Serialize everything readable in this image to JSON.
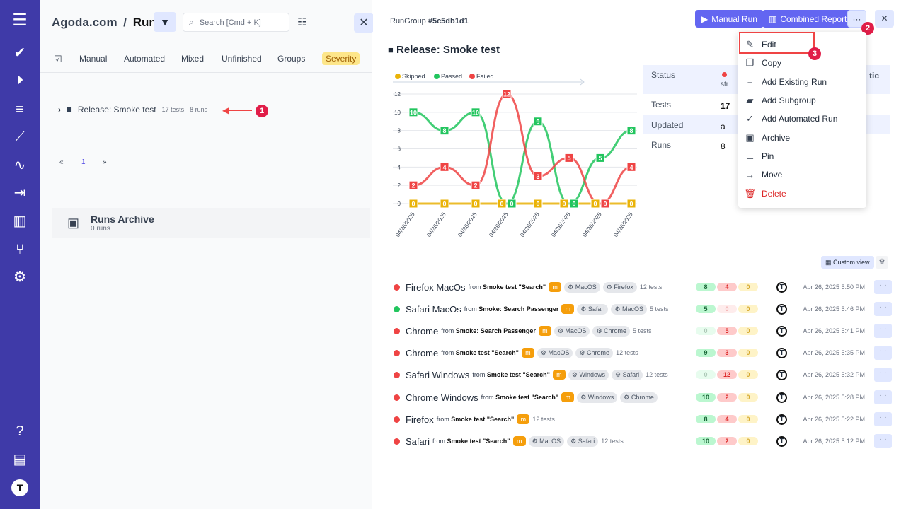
{
  "sidebar": {
    "icons": [
      "menu-icon",
      "check-icon",
      "play-icon",
      "list-check-icon",
      "steps-icon",
      "pulse-icon",
      "import-icon",
      "analytics-icon",
      "branch-icon",
      "gear-icon",
      "help-icon",
      "projects-icon",
      "user-avatar-icon"
    ]
  },
  "left": {
    "breadcrumb_project": "Agoda.com",
    "breadcrumb_sep": "/",
    "breadcrumb_page": "Runs",
    "search_placeholder": "Search [Cmd + K]",
    "tabs": [
      "Manual",
      "Automated",
      "Mixed",
      "Unfinished",
      "Groups",
      "Severity"
    ],
    "group": {
      "name": "Release: Smoke test",
      "tests": "17 tests",
      "runs": "8 runs"
    },
    "pagination": {
      "prev": "«",
      "page": "1",
      "next": "»"
    },
    "archive": {
      "title": "Runs Archive",
      "count": "0 runs"
    },
    "annotation": "1"
  },
  "right": {
    "rungroup_label": "RunGroup",
    "rungroup_id": "#5c5db1d1",
    "manual_run": "Manual Run",
    "combined_report": "Combined Report",
    "more": "···",
    "title": "Release: Smoke test",
    "annotation2": "2",
    "annotation3": "3",
    "details": [
      {
        "label": "Status",
        "value": "str",
        "extra": "tic"
      },
      {
        "label": "Tests",
        "value": "17"
      },
      {
        "label": "Updated",
        "value": "a"
      },
      {
        "label": "Runs",
        "value": "8"
      }
    ],
    "custom_view": "Custom view",
    "menu": [
      "Edit",
      "Copy",
      "Add Existing Run",
      "Add Subgroup",
      "Add Automated Run",
      "Archive",
      "Pin",
      "Move",
      "Delete"
    ],
    "runs": [
      {
        "name": "Firefox MacOs",
        "from": "from",
        "source": "Smoke test \"Search\"",
        "tags": [
          "MacOS",
          "Firefox"
        ],
        "tests": "12 tests",
        "passed": "8",
        "failed": "4",
        "skipped": "0",
        "date": "Apr 26, 2025 5:50 PM",
        "status": "failed"
      },
      {
        "name": "Safari MacOs",
        "from": "from",
        "source": "Smoke: Search Passenger",
        "tags": [
          "Safari",
          "MacOS"
        ],
        "tests": "5 tests",
        "passed": "5",
        "failed": "0",
        "skipped": "0",
        "date": "Apr 26, 2025 5:46 PM",
        "status": "passed"
      },
      {
        "name": "Chrome",
        "from": "from",
        "source": "Smoke: Search Passenger",
        "tags": [
          "MacOS",
          "Chrome"
        ],
        "tests": "5 tests",
        "passed": "0",
        "failed": "5",
        "skipped": "0",
        "date": "Apr 26, 2025 5:41 PM",
        "status": "failed"
      },
      {
        "name": "Chrome",
        "from": "from",
        "source": "Smoke test \"Search\"",
        "tags": [
          "MacOS",
          "Chrome"
        ],
        "tests": "12 tests",
        "passed": "9",
        "failed": "3",
        "skipped": "0",
        "date": "Apr 26, 2025 5:35 PM",
        "status": "failed"
      },
      {
        "name": "Safari Windows",
        "from": "from",
        "source": "Smoke test \"Search\"",
        "tags": [
          "Windows",
          "Safari"
        ],
        "tests": "12 tests",
        "passed": "0",
        "failed": "12",
        "skipped": "0",
        "date": "Apr 26, 2025 5:32 PM",
        "status": "failed"
      },
      {
        "name": "Chrome Windows",
        "from": "from",
        "source": "Smoke test \"Search\"",
        "tags": [
          "Windows",
          "Chrome"
        ],
        "tests": "",
        "passed": "10",
        "failed": "2",
        "skipped": "0",
        "date": "Apr 26, 2025 5:28 PM",
        "status": "failed"
      },
      {
        "name": "Firefox",
        "from": "from",
        "source": "Smoke test \"Search\"",
        "tags": [],
        "tests": "12 tests",
        "passed": "8",
        "failed": "4",
        "skipped": "0",
        "date": "Apr 26, 2025 5:22 PM",
        "status": "failed"
      },
      {
        "name": "Safari",
        "from": "from",
        "source": "Smoke test \"Search\"",
        "tags": [
          "MacOS",
          "Safari"
        ],
        "tests": "12 tests",
        "passed": "10",
        "failed": "2",
        "skipped": "0",
        "date": "Apr 26, 2025 5:12 PM",
        "status": "failed"
      }
    ],
    "m_badge": "m",
    "avatar": "T"
  },
  "chart_data": {
    "type": "line",
    "categories": [
      "04/26/2025",
      "04/26/2025",
      "04/26/2025",
      "04/26/2025",
      "04/26/2025",
      "04/26/2025",
      "04/26/2025",
      "04/26/2025"
    ],
    "series": [
      {
        "name": "Skipped",
        "color": "#eab308",
        "values": [
          0,
          0,
          0,
          0,
          0,
          0,
          0,
          0
        ]
      },
      {
        "name": "Passed",
        "color": "#22c55e",
        "values": [
          10,
          8,
          10,
          0,
          9,
          0,
          5,
          8
        ]
      },
      {
        "name": "Failed",
        "color": "#ef4444",
        "values": [
          2,
          4,
          2,
          12,
          3,
          5,
          0,
          4
        ]
      }
    ],
    "ylim": [
      0,
      12
    ],
    "yticks": [
      0,
      2,
      4,
      6,
      8,
      10,
      12
    ],
    "grid": true,
    "legend": "top-left"
  }
}
